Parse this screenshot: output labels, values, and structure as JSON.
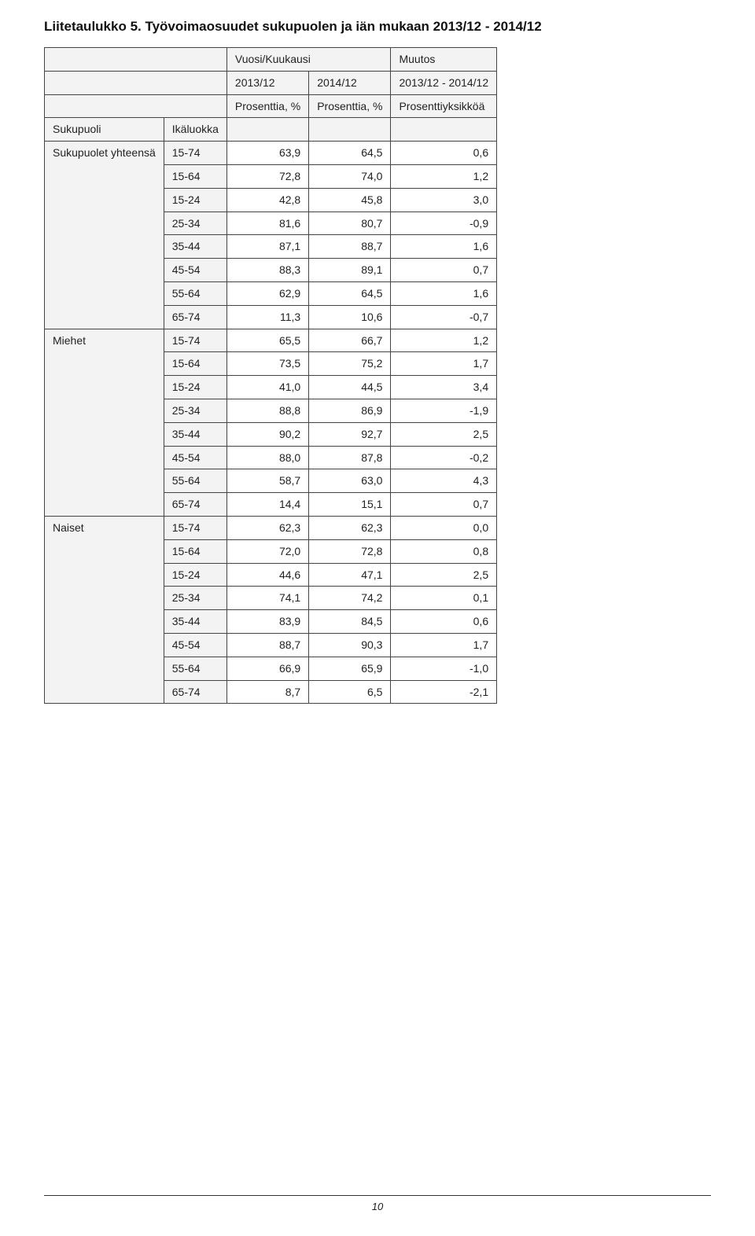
{
  "title": "Liitetaulukko 5. Työvoimaosuudet sukupuolen ja iän mukaan 2013/12 - 2014/12",
  "table": {
    "header_row1": {
      "vuosi": "Vuosi/Kuukausi",
      "muutos": "Muutos"
    },
    "header_row2": {
      "c1": "2013/12",
      "c2": "2014/12",
      "c3": "2013/12 - 2014/12"
    },
    "header_row3": {
      "c1": "Prosenttia, %",
      "c2": "Prosenttia, %",
      "c3": "Prosenttiyksikköä"
    },
    "header_row4": {
      "sukupuoli": "Sukupuoli",
      "ikaluokka": "Ikäluokka"
    },
    "groups": [
      {
        "label": "Sukupuolet yhteensä",
        "rows": [
          {
            "age": "15-74",
            "v1": "63,9",
            "v2": "64,5",
            "v3": "0,6"
          },
          {
            "age": "15-64",
            "v1": "72,8",
            "v2": "74,0",
            "v3": "1,2"
          },
          {
            "age": "15-24",
            "v1": "42,8",
            "v2": "45,8",
            "v3": "3,0"
          },
          {
            "age": "25-34",
            "v1": "81,6",
            "v2": "80,7",
            "v3": "-0,9"
          },
          {
            "age": "35-44",
            "v1": "87,1",
            "v2": "88,7",
            "v3": "1,6"
          },
          {
            "age": "45-54",
            "v1": "88,3",
            "v2": "89,1",
            "v3": "0,7"
          },
          {
            "age": "55-64",
            "v1": "62,9",
            "v2": "64,5",
            "v3": "1,6"
          },
          {
            "age": "65-74",
            "v1": "11,3",
            "v2": "10,6",
            "v3": "-0,7"
          }
        ]
      },
      {
        "label": "Miehet",
        "rows": [
          {
            "age": "15-74",
            "v1": "65,5",
            "v2": "66,7",
            "v3": "1,2"
          },
          {
            "age": "15-64",
            "v1": "73,5",
            "v2": "75,2",
            "v3": "1,7"
          },
          {
            "age": "15-24",
            "v1": "41,0",
            "v2": "44,5",
            "v3": "3,4"
          },
          {
            "age": "25-34",
            "v1": "88,8",
            "v2": "86,9",
            "v3": "-1,9"
          },
          {
            "age": "35-44",
            "v1": "90,2",
            "v2": "92,7",
            "v3": "2,5"
          },
          {
            "age": "45-54",
            "v1": "88,0",
            "v2": "87,8",
            "v3": "-0,2"
          },
          {
            "age": "55-64",
            "v1": "58,7",
            "v2": "63,0",
            "v3": "4,3"
          },
          {
            "age": "65-74",
            "v1": "14,4",
            "v2": "15,1",
            "v3": "0,7"
          }
        ]
      },
      {
        "label": "Naiset",
        "rows": [
          {
            "age": "15-74",
            "v1": "62,3",
            "v2": "62,3",
            "v3": "0,0"
          },
          {
            "age": "15-64",
            "v1": "72,0",
            "v2": "72,8",
            "v3": "0,8"
          },
          {
            "age": "15-24",
            "v1": "44,6",
            "v2": "47,1",
            "v3": "2,5"
          },
          {
            "age": "25-34",
            "v1": "74,1",
            "v2": "74,2",
            "v3": "0,1"
          },
          {
            "age": "35-44",
            "v1": "83,9",
            "v2": "84,5",
            "v3": "0,6"
          },
          {
            "age": "45-54",
            "v1": "88,7",
            "v2": "90,3",
            "v3": "1,7"
          },
          {
            "age": "55-64",
            "v1": "66,9",
            "v2": "65,9",
            "v3": "-1,0"
          },
          {
            "age": "65-74",
            "v1": "8,7",
            "v2": "6,5",
            "v3": "-2,1"
          }
        ]
      }
    ]
  },
  "page_number": "10",
  "colors": {
    "header_bg": "#f3f3f3",
    "border": "#444444",
    "text": "#222222",
    "bg": "#ffffff"
  }
}
